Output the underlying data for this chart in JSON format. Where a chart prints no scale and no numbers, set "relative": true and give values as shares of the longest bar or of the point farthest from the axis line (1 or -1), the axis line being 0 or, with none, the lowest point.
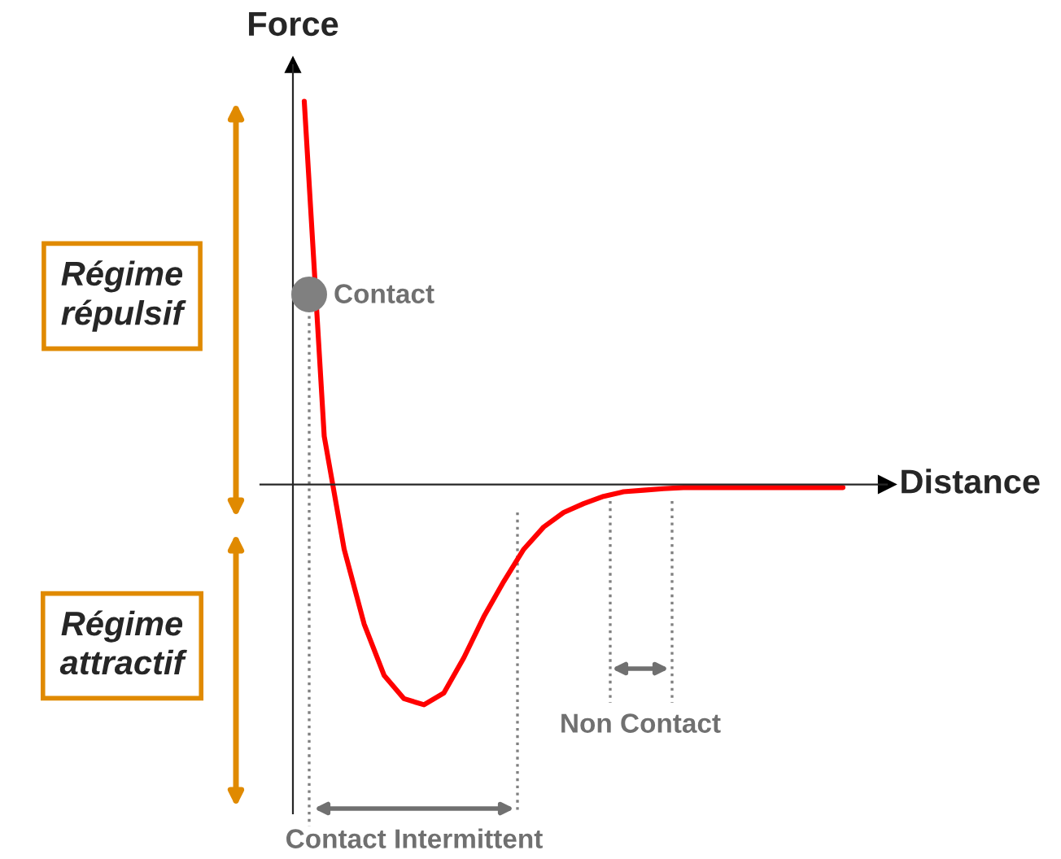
{
  "chart_data": {
    "type": "line",
    "relative": true,
    "xlabel": "Distance",
    "ylabel": "Force",
    "categories": [
      null,
      null,
      null,
      null,
      null,
      null,
      null,
      null,
      null,
      null,
      null,
      null,
      null,
      null,
      null,
      null,
      null,
      null,
      null,
      null,
      null,
      null,
      null,
      null,
      null,
      null,
      null,
      null
    ],
    "series": [
      {
        "color": "#ff0000",
        "values": [
          1.0,
          0.126,
          -0.169,
          -0.364,
          -0.498,
          -0.559,
          -0.575,
          -0.544,
          -0.452,
          -0.345,
          -0.253,
          -0.169,
          -0.111,
          -0.073,
          -0.05,
          -0.031,
          -0.019,
          -0.015,
          -0.011,
          -0.008,
          -0.008,
          -0.008,
          -0.008,
          -0.008,
          -0.008,
          -0.008,
          -0.008,
          -0.008
        ]
      }
    ],
    "annotations": [
      "Contact",
      "Régime\nrépulsif",
      "Régime\nattractif",
      "Contact Intermittent",
      "Non Contact"
    ]
  }
}
